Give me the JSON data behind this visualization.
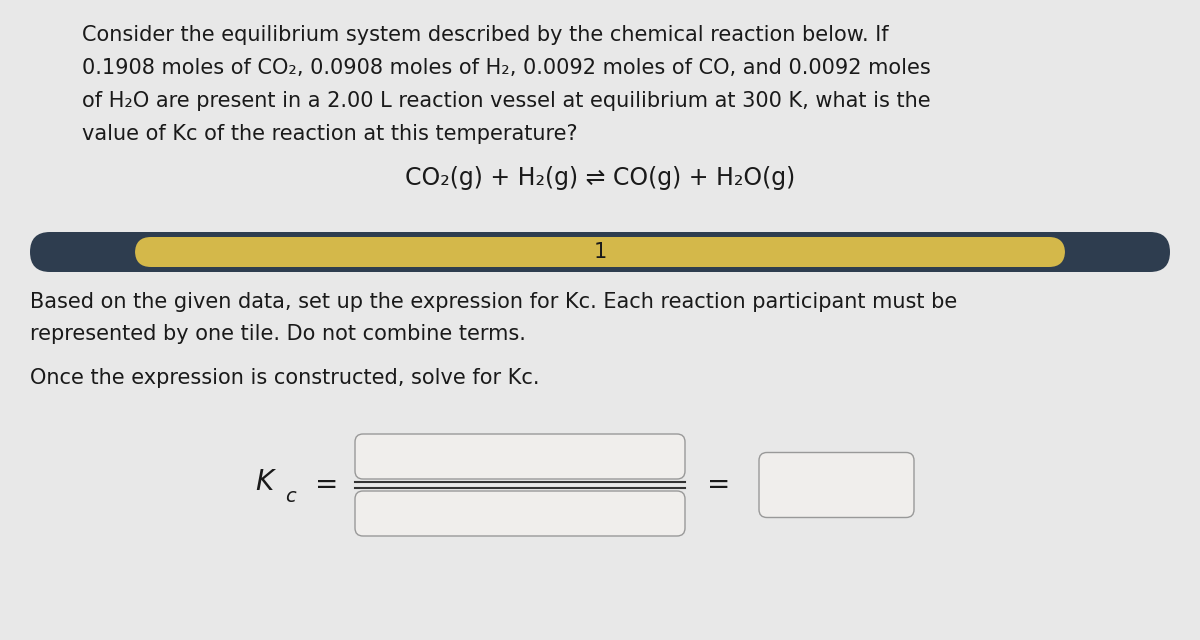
{
  "bg_color": "#e8e8e8",
  "title_text_line1": "Consider the equilibrium system described by the chemical reaction below. If",
  "title_text_line2": "0.1908 moles of CO₂, 0.0908 moles of H₂, 0.0092 moles of CO, and 0.0092 moles",
  "title_text_line3": "of H₂O are present in a 2.00 L reaction vessel at equilibrium at 300 K, what is the",
  "title_text_line4": "value of Kc of the reaction at this temperature?",
  "equation": "CO₂(g) + H₂(g) ⇌ CO(g) + H₂O(g)",
  "bar_outer_color": "#2e3d4f",
  "bar_inner_color": "#d4b84a",
  "bar_label": "1",
  "instruction_line1": "Based on the given data, set up the expression for Kc. Each reaction participant must be",
  "instruction_line2": "represented by one tile. Do not combine terms.",
  "instruction_line3": "Once the expression is constructed, solve for Kc.",
  "box_fill_color": "#f0eeec",
  "box_border_color": "#999999",
  "text_color": "#1a1a1a",
  "font_size_main": 15,
  "font_size_eq": 17
}
